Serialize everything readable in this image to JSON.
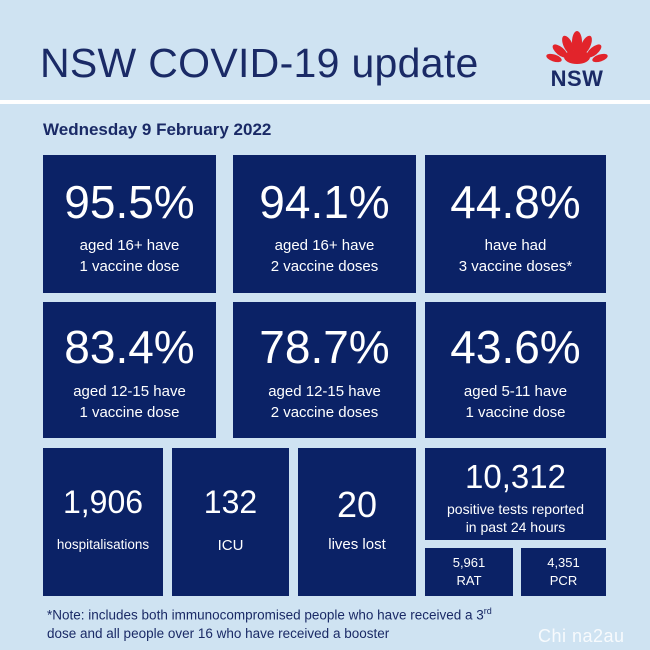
{
  "title": "NSW COVID-19 update",
  "logo": {
    "text": "NSW",
    "icon": "waratah-flower-icon"
  },
  "date": "Wednesday 9 February 2022",
  "vaccination_tiles": [
    {
      "value": "95.5%",
      "line1": "aged 16+ have",
      "line2": "1 vaccine dose"
    },
    {
      "value": "94.1%",
      "line1": "aged 16+ have",
      "line2": "2 vaccine doses"
    },
    {
      "value": "44.8%",
      "line1": "have had",
      "line2": "3 vaccine doses*"
    },
    {
      "value": "83.4%",
      "line1": "aged 12-15 have",
      "line2": "1 vaccine dose"
    },
    {
      "value": "78.7%",
      "line1": "aged 12-15 have",
      "line2": "2 vaccine doses"
    },
    {
      "value": "43.6%",
      "line1": "aged 5-11 have",
      "line2": "1 vaccine dose"
    }
  ],
  "stats": {
    "hospitalisations": {
      "value": "1,906",
      "label": "hospitalisations"
    },
    "icu": {
      "value": "132",
      "label": "ICU"
    },
    "lives_lost": {
      "value": "20",
      "label": "lives lost"
    },
    "positive_tests": {
      "value": "10,312",
      "line1": "positive tests reported",
      "line2": "in past 24 hours"
    },
    "rat": {
      "value": "5,961",
      "label": "RAT"
    },
    "pcr": {
      "value": "4,351",
      "label": "PCR"
    }
  },
  "note": {
    "part1": "*Note: includes both immunocompromised people who have received a 3",
    "sup": "rd",
    "part2": "dose and all people over 16 who have received a booster"
  },
  "watermark": "Chi na2au",
  "colors": {
    "background": "#cfe3f2",
    "tile": "#0b2266",
    "title": "#1a2a66",
    "flower": "#e2242b"
  }
}
